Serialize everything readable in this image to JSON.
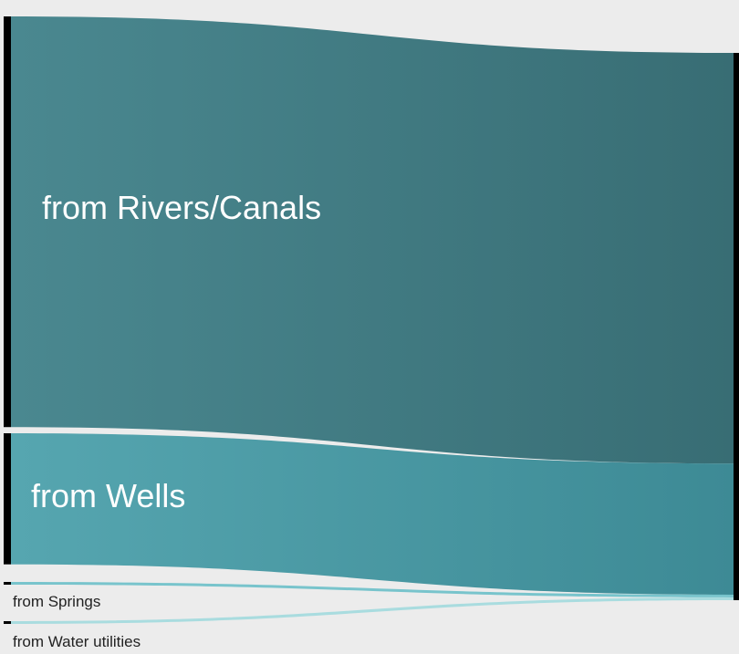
{
  "chart_data": {
    "type": "sankey",
    "nodes": [
      {
        "id": "rivers",
        "label": "from Rivers/Canals",
        "value": 448,
        "color": "#3f7a80"
      },
      {
        "id": "wells",
        "label": "from Wells",
        "value": 143,
        "color": "#4b9ba6"
      },
      {
        "id": "springs",
        "label": "from Springs",
        "value": 3,
        "color": "#78c4cc"
      },
      {
        "id": "utilities",
        "label": "from Water utilities",
        "value": 3,
        "color": "#a9dcdf"
      }
    ],
    "links": [
      {
        "source": "rivers",
        "target": "total",
        "value": 448
      },
      {
        "source": "wells",
        "target": "total",
        "value": 143
      },
      {
        "source": "springs",
        "target": "total",
        "value": 3
      },
      {
        "source": "utilities",
        "target": "total",
        "value": 3
      }
    ],
    "colors": {
      "background": "#ececec",
      "node_bar": "#000000",
      "rivers_start": "#4a8890",
      "rivers_end": "#386d74",
      "wells_start": "#56a6b0",
      "wells_end": "#3d8a95",
      "springs": "#78c4cc",
      "utilities": "#a9dcdf"
    }
  }
}
